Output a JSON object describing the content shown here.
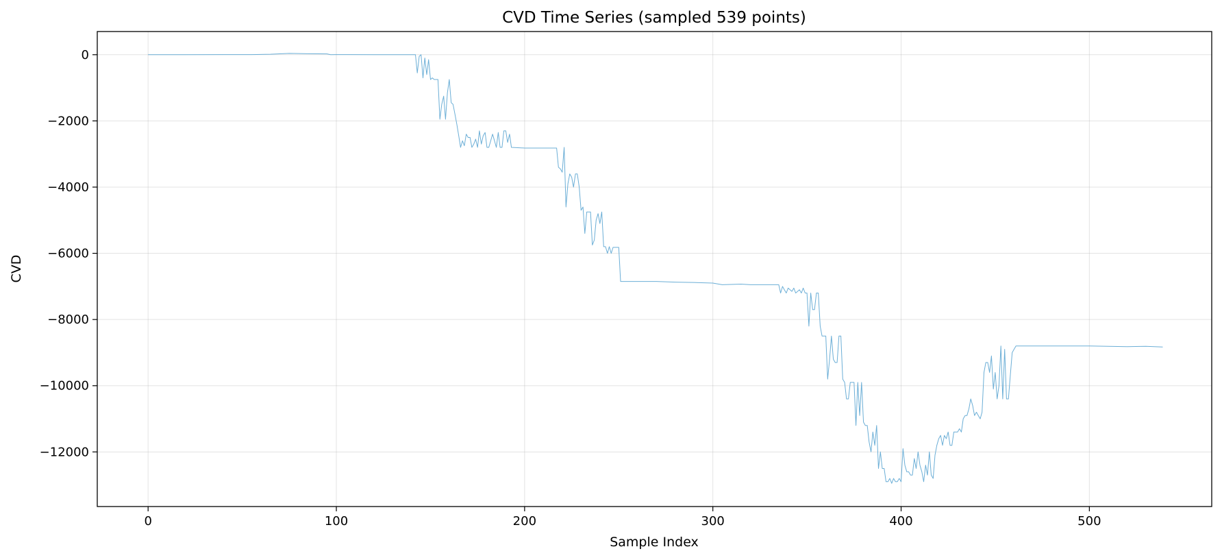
{
  "chart_data": {
    "type": "line",
    "title": "CVD Time Series (sampled 539 points)",
    "xlabel": "Sample Index",
    "ylabel": "CVD",
    "xlim": [
      -27,
      565
    ],
    "ylim": [
      -13650,
      700
    ],
    "xticks": [
      0,
      100,
      200,
      300,
      400,
      500
    ],
    "yticks": [
      0,
      -2000,
      -4000,
      -6000,
      -8000,
      -10000,
      -12000
    ],
    "xtick_labels": [
      "0",
      "100",
      "200",
      "300",
      "400",
      "500"
    ],
    "ytick_labels": [
      "0",
      "−2000",
      "−4000",
      "−6000",
      "−8000",
      "−10000",
      "−12000"
    ],
    "grid": true,
    "legend": "none",
    "line_color": "#6baed6",
    "series": [
      {
        "points": [
          [
            0,
            0
          ],
          [
            20,
            0
          ],
          [
            40,
            5
          ],
          [
            55,
            5
          ],
          [
            65,
            15
          ],
          [
            75,
            40
          ],
          [
            85,
            30
          ],
          [
            95,
            25
          ],
          [
            97,
            0
          ],
          [
            100,
            5
          ],
          [
            120,
            0
          ],
          [
            142,
            0
          ],
          [
            143,
            -550
          ],
          [
            144,
            -50
          ],
          [
            145,
            0
          ],
          [
            146,
            -700
          ],
          [
            147,
            -100
          ],
          [
            148,
            -600
          ],
          [
            149,
            -150
          ],
          [
            150,
            -750
          ],
          [
            151,
            -700
          ],
          [
            152,
            -750
          ],
          [
            154,
            -750
          ],
          [
            155,
            -1950
          ],
          [
            156,
            -1500
          ],
          [
            157,
            -1250
          ],
          [
            158,
            -1950
          ],
          [
            159,
            -1150
          ],
          [
            160,
            -750
          ],
          [
            161,
            -1450
          ],
          [
            162,
            -1500
          ],
          [
            163,
            -1800
          ],
          [
            164,
            -2100
          ],
          [
            165,
            -2450
          ],
          [
            166,
            -2800
          ],
          [
            167,
            -2600
          ],
          [
            168,
            -2750
          ],
          [
            169,
            -2400
          ],
          [
            170,
            -2500
          ],
          [
            171,
            -2500
          ],
          [
            172,
            -2800
          ],
          [
            173,
            -2700
          ],
          [
            174,
            -2550
          ],
          [
            175,
            -2800
          ],
          [
            176,
            -2300
          ],
          [
            177,
            -2700
          ],
          [
            178,
            -2450
          ],
          [
            179,
            -2350
          ],
          [
            180,
            -2800
          ],
          [
            181,
            -2800
          ],
          [
            182,
            -2600
          ],
          [
            183,
            -2400
          ],
          [
            184,
            -2600
          ],
          [
            185,
            -2800
          ],
          [
            186,
            -2350
          ],
          [
            187,
            -2800
          ],
          [
            188,
            -2800
          ],
          [
            189,
            -2300
          ],
          [
            190,
            -2300
          ],
          [
            191,
            -2650
          ],
          [
            192,
            -2400
          ],
          [
            193,
            -2800
          ],
          [
            200,
            -2820
          ],
          [
            210,
            -2820
          ],
          [
            217,
            -2820
          ],
          [
            218,
            -3400
          ],
          [
            219,
            -3450
          ],
          [
            220,
            -3550
          ],
          [
            221,
            -2800
          ],
          [
            222,
            -4600
          ],
          [
            223,
            -3900
          ],
          [
            224,
            -3600
          ],
          [
            225,
            -3700
          ],
          [
            226,
            -4000
          ],
          [
            227,
            -3600
          ],
          [
            228,
            -3600
          ],
          [
            229,
            -4000
          ],
          [
            230,
            -4700
          ],
          [
            231,
            -4600
          ],
          [
            232,
            -5400
          ],
          [
            233,
            -4750
          ],
          [
            234,
            -4750
          ],
          [
            235,
            -4750
          ],
          [
            236,
            -5750
          ],
          [
            237,
            -5600
          ],
          [
            238,
            -5000
          ],
          [
            239,
            -4800
          ],
          [
            240,
            -5100
          ],
          [
            241,
            -4750
          ],
          [
            242,
            -5800
          ],
          [
            243,
            -5800
          ],
          [
            244,
            -6000
          ],
          [
            245,
            -5800
          ],
          [
            246,
            -6000
          ],
          [
            247,
            -5820
          ],
          [
            250,
            -5820
          ],
          [
            251,
            -6850
          ],
          [
            260,
            -6850
          ],
          [
            270,
            -6850
          ],
          [
            280,
            -6870
          ],
          [
            290,
            -6880
          ],
          [
            300,
            -6900
          ],
          [
            305,
            -6950
          ],
          [
            315,
            -6930
          ],
          [
            320,
            -6950
          ],
          [
            330,
            -6950
          ],
          [
            335,
            -6950
          ],
          [
            336,
            -7200
          ],
          [
            337,
            -7000
          ],
          [
            338,
            -7100
          ],
          [
            339,
            -7200
          ],
          [
            340,
            -7050
          ],
          [
            341,
            -7100
          ],
          [
            342,
            -7150
          ],
          [
            343,
            -7050
          ],
          [
            344,
            -7200
          ],
          [
            345,
            -7150
          ],
          [
            346,
            -7100
          ],
          [
            347,
            -7200
          ],
          [
            348,
            -7050
          ],
          [
            349,
            -7200
          ],
          [
            350,
            -7200
          ],
          [
            351,
            -8200
          ],
          [
            352,
            -7200
          ],
          [
            353,
            -7700
          ],
          [
            354,
            -7700
          ],
          [
            355,
            -7200
          ],
          [
            356,
            -7200
          ],
          [
            357,
            -8200
          ],
          [
            358,
            -8500
          ],
          [
            359,
            -8500
          ],
          [
            360,
            -8500
          ],
          [
            361,
            -9800
          ],
          [
            362,
            -9200
          ],
          [
            363,
            -8500
          ],
          [
            364,
            -9200
          ],
          [
            365,
            -9300
          ],
          [
            366,
            -9300
          ],
          [
            367,
            -8500
          ],
          [
            368,
            -8500
          ],
          [
            369,
            -9800
          ],
          [
            370,
            -9900
          ],
          [
            371,
            -10400
          ],
          [
            372,
            -10400
          ],
          [
            373,
            -9900
          ],
          [
            374,
            -9900
          ],
          [
            375,
            -9900
          ],
          [
            376,
            -11200
          ],
          [
            377,
            -9900
          ],
          [
            378,
            -10900
          ],
          [
            379,
            -9900
          ],
          [
            380,
            -11100
          ],
          [
            381,
            -11200
          ],
          [
            382,
            -11200
          ],
          [
            383,
            -11700
          ],
          [
            384,
            -12000
          ],
          [
            385,
            -11400
          ],
          [
            386,
            -11800
          ],
          [
            387,
            -11200
          ],
          [
            388,
            -12500
          ],
          [
            389,
            -12000
          ],
          [
            390,
            -12500
          ],
          [
            391,
            -12500
          ],
          [
            392,
            -12900
          ],
          [
            393,
            -12900
          ],
          [
            394,
            -12800
          ],
          [
            395,
            -12950
          ],
          [
            396,
            -12800
          ],
          [
            397,
            -12900
          ],
          [
            398,
            -12900
          ],
          [
            399,
            -12800
          ],
          [
            400,
            -12900
          ],
          [
            401,
            -11900
          ],
          [
            402,
            -12400
          ],
          [
            403,
            -12600
          ],
          [
            404,
            -12600
          ],
          [
            405,
            -12700
          ],
          [
            406,
            -12700
          ],
          [
            407,
            -12200
          ],
          [
            408,
            -12500
          ],
          [
            409,
            -12000
          ],
          [
            410,
            -12400
          ],
          [
            411,
            -12600
          ],
          [
            412,
            -12900
          ],
          [
            413,
            -12400
          ],
          [
            414,
            -12700
          ],
          [
            415,
            -12000
          ],
          [
            416,
            -12700
          ],
          [
            417,
            -12800
          ],
          [
            418,
            -12100
          ],
          [
            419,
            -11800
          ],
          [
            420,
            -11600
          ],
          [
            421,
            -11500
          ],
          [
            422,
            -11800
          ],
          [
            423,
            -11500
          ],
          [
            424,
            -11600
          ],
          [
            425,
            -11400
          ],
          [
            426,
            -11800
          ],
          [
            427,
            -11800
          ],
          [
            428,
            -11400
          ],
          [
            429,
            -11400
          ],
          [
            430,
            -11400
          ],
          [
            431,
            -11300
          ],
          [
            432,
            -11400
          ],
          [
            433,
            -11000
          ],
          [
            434,
            -10900
          ],
          [
            435,
            -10900
          ],
          [
            436,
            -10700
          ],
          [
            437,
            -10400
          ],
          [
            438,
            -10600
          ],
          [
            439,
            -10900
          ],
          [
            440,
            -10800
          ],
          [
            441,
            -10900
          ],
          [
            442,
            -11000
          ],
          [
            443,
            -10800
          ],
          [
            444,
            -9600
          ],
          [
            445,
            -9300
          ],
          [
            446,
            -9300
          ],
          [
            447,
            -9600
          ],
          [
            448,
            -9100
          ],
          [
            449,
            -10100
          ],
          [
            450,
            -9600
          ],
          [
            451,
            -10400
          ],
          [
            452,
            -10000
          ],
          [
            453,
            -8800
          ],
          [
            454,
            -10400
          ],
          [
            455,
            -8900
          ],
          [
            456,
            -10400
          ],
          [
            457,
            -10400
          ],
          [
            458,
            -9700
          ],
          [
            459,
            -9000
          ],
          [
            460,
            -8900
          ],
          [
            461,
            -8800
          ],
          [
            470,
            -8800
          ],
          [
            480,
            -8800
          ],
          [
            490,
            -8800
          ],
          [
            500,
            -8800
          ],
          [
            510,
            -8810
          ],
          [
            520,
            -8820
          ],
          [
            530,
            -8810
          ],
          [
            539,
            -8830
          ]
        ]
      }
    ]
  }
}
